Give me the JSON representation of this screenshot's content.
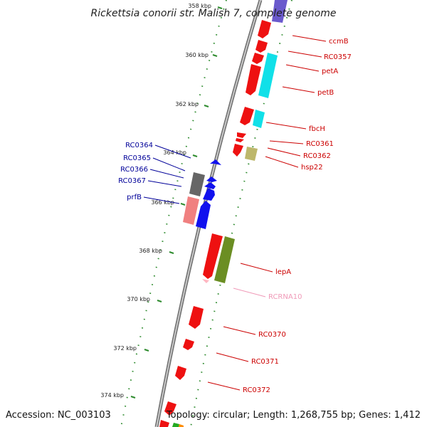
{
  "title": "Rickettsia conorii str. Malish 7, complete genome",
  "footer": {
    "accession": "Accession: NC_003103",
    "summary": "Topology: circular; Length: 1,268,755 bp; Genes: 1,412"
  },
  "colors": {
    "backbone": "#888888",
    "ticks": "#2e8b2e",
    "gene_red": "#ee1111",
    "gene_cyan": "#11e0e8",
    "gene_blue": "#1111ee",
    "gene_olive": "#6b8e23",
    "gene_khaki": "#bdb76b",
    "gene_gray": "#666666",
    "gene_salmon": "#f08080",
    "gene_pink": "#ffb6c1",
    "label_red": "#cc0000",
    "label_blue": "#000099",
    "label_pink": "#f09ab8"
  },
  "scale": {
    "ticks": [
      {
        "label": "358 kbp"
      },
      {
        "label": "360 kbp"
      },
      {
        "label": "362 kbp"
      },
      {
        "label": "364 kbp"
      },
      {
        "label": "366 kbp"
      },
      {
        "label": "368 kbp"
      },
      {
        "label": "370 kbp"
      },
      {
        "label": "372 kbp"
      },
      {
        "label": "374 kbp"
      }
    ]
  },
  "gene_labels": [
    {
      "name": "ccmB",
      "color": "label_red"
    },
    {
      "name": "RC0357",
      "color": "label_red"
    },
    {
      "name": "petA",
      "color": "label_red"
    },
    {
      "name": "petB",
      "color": "label_red"
    },
    {
      "name": "fbcH",
      "color": "label_red"
    },
    {
      "name": "RC0361",
      "color": "label_red"
    },
    {
      "name": "RC0362",
      "color": "label_red"
    },
    {
      "name": "hsp22",
      "color": "label_red"
    },
    {
      "name": "lepA",
      "color": "label_red"
    },
    {
      "name": "RCRNA10",
      "color": "label_pink"
    },
    {
      "name": "RC0370",
      "color": "label_red"
    },
    {
      "name": "RC0371",
      "color": "label_red"
    },
    {
      "name": "RC0372",
      "color": "label_red"
    },
    {
      "name": "RC0364",
      "color": "label_blue"
    },
    {
      "name": "RC0365",
      "color": "label_blue"
    },
    {
      "name": "RC0366",
      "color": "label_blue"
    },
    {
      "name": "RC0367",
      "color": "label_blue"
    },
    {
      "name": "prfB",
      "color": "label_blue"
    }
  ]
}
